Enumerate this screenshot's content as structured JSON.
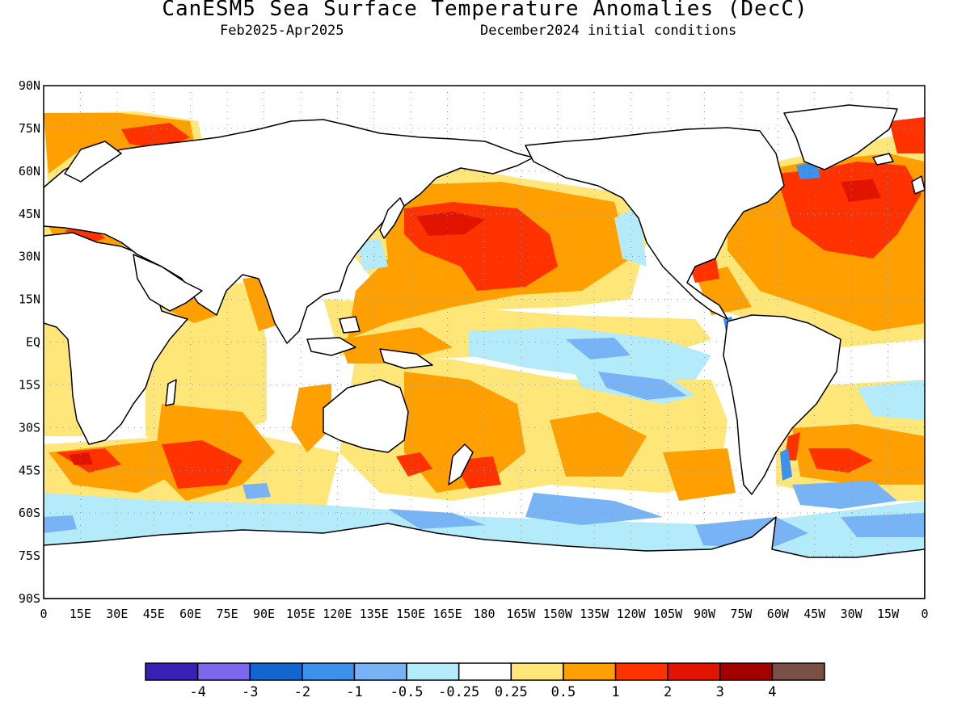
{
  "header": {
    "title": "CanESM5 Sea Surface Temperature Anomalies (DecC)",
    "period": "Feb2025-Apr2025",
    "init": "December2024 initial conditions"
  },
  "axes": {
    "lat_labels": [
      "90N",
      "75N",
      "60N",
      "45N",
      "30N",
      "15N",
      "EQ",
      "15S",
      "30S",
      "45S",
      "60S",
      "75S",
      "90S"
    ],
    "lon_labels": [
      "0",
      "15E",
      "30E",
      "45E",
      "60E",
      "75E",
      "90E",
      "105E",
      "120E",
      "135E",
      "150E",
      "165E",
      "180",
      "165W",
      "150W",
      "135W",
      "120W",
      "105W",
      "90W",
      "75W",
      "60W",
      "45W",
      "30W",
      "15W",
      "0"
    ]
  },
  "legend": {
    "colors": [
      "#3a1fb6",
      "#7b68ee",
      "#1464d2",
      "#3c91eb",
      "#78b4f5",
      "#b4ebfa",
      "#ffffff",
      "#ffe678",
      "#ffa000",
      "#ff3200",
      "#e11400",
      "#a50000",
      "#785046"
    ],
    "labels": [
      "-4",
      "-3",
      "-2",
      "-1",
      "-0.5",
      "-0.25",
      "0.25",
      "0.5",
      "1",
      "2",
      "3",
      "4"
    ]
  },
  "colors": {
    "land_outline": "#000000",
    "gridline": "#9a9a9a"
  }
}
